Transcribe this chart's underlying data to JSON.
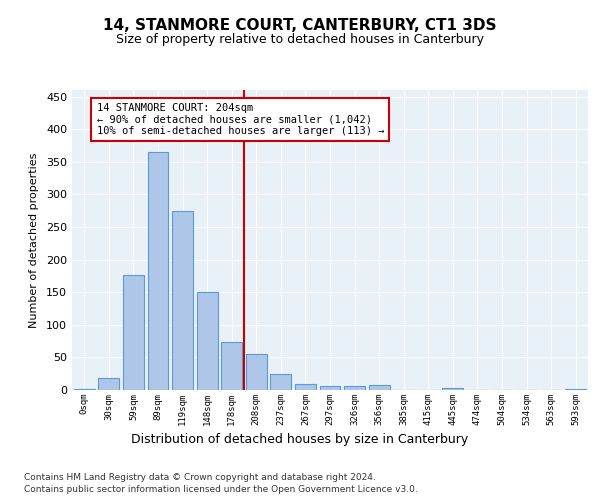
{
  "title": "14, STANMORE COURT, CANTERBURY, CT1 3DS",
  "subtitle": "Size of property relative to detached houses in Canterbury",
  "xlabel": "Distribution of detached houses by size in Canterbury",
  "ylabel": "Number of detached properties",
  "footnote1": "Contains HM Land Registry data © Crown copyright and database right 2024.",
  "footnote2": "Contains public sector information licensed under the Open Government Licence v3.0.",
  "annotation_line1": "14 STANMORE COURT: 204sqm",
  "annotation_line2": "← 90% of detached houses are smaller (1,042)",
  "annotation_line3": "10% of semi-detached houses are larger (113) →",
  "bar_categories": [
    "0sqm",
    "30sqm",
    "59sqm",
    "89sqm",
    "119sqm",
    "148sqm",
    "178sqm",
    "208sqm",
    "237sqm",
    "267sqm",
    "297sqm",
    "326sqm",
    "356sqm",
    "385sqm",
    "415sqm",
    "445sqm",
    "474sqm",
    "504sqm",
    "534sqm",
    "563sqm",
    "593sqm"
  ],
  "bar_values": [
    2,
    18,
    176,
    365,
    275,
    151,
    73,
    55,
    25,
    9,
    6,
    6,
    7,
    0,
    0,
    3,
    0,
    0,
    0,
    0,
    2
  ],
  "bar_color": "#aec6e8",
  "bar_edge_color": "#5b9bd5",
  "vline_x": 6.5,
  "vline_color": "#cc0000",
  "annotation_box_edge_color": "#cc0000",
  "plot_bg_color": "#e8f0f8",
  "ylim": [
    0,
    460
  ],
  "yticks": [
    0,
    50,
    100,
    150,
    200,
    250,
    300,
    350,
    400,
    450
  ]
}
